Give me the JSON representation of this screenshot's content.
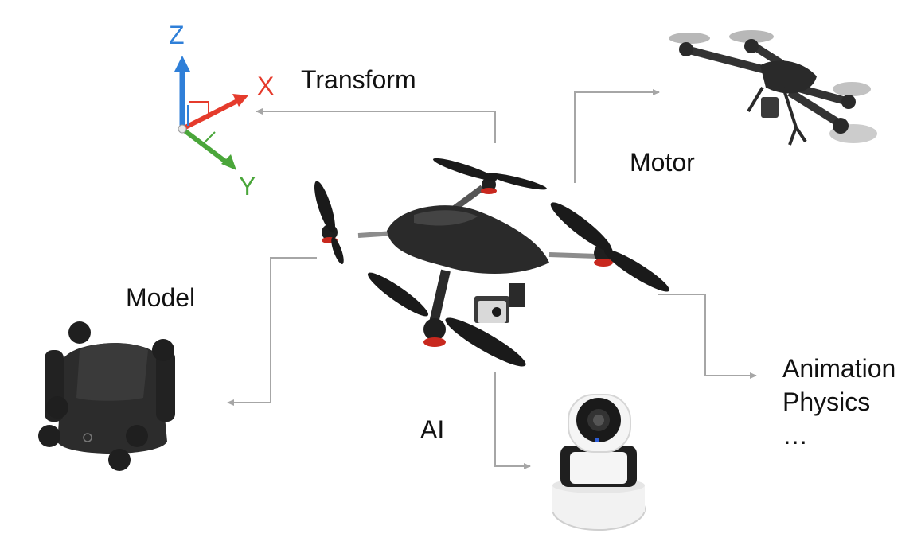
{
  "labels": {
    "transform": "Transform",
    "motor": "Motor",
    "model": "Model",
    "ai": "AI",
    "systems": [
      "Animation",
      "Physics",
      "…"
    ]
  },
  "axes": {
    "z": "Z",
    "x": "X",
    "y": "Y"
  },
  "colors": {
    "axis_z": "#2f7fd8",
    "axis_x": "#e53b2c",
    "axis_y": "#4aa63a",
    "arrow": "#a6a6a6",
    "drone_body": "#2a2a2a",
    "motor_red": "#c8281e",
    "camera_white": "#f2f2f2"
  },
  "icons": {
    "center": "quadcopter-drone-icon",
    "motor": "flying-drone-icon",
    "model": "folded-drone-icon",
    "ai": "security-camera-icon",
    "transform": "xyz-axes-gizmo-icon"
  }
}
